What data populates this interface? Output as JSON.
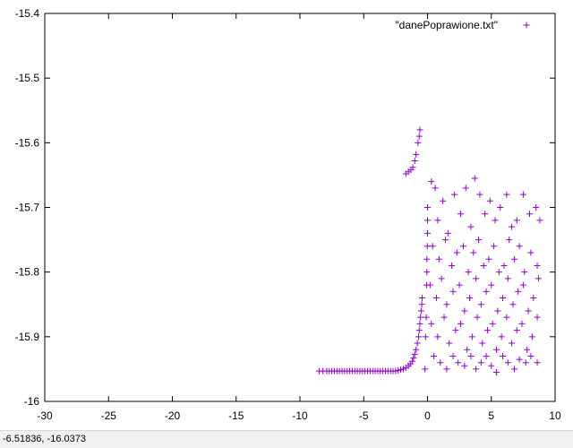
{
  "status_bar": {
    "coordinates": "-6.51836, -16.0373"
  },
  "colors": {
    "series": "#9400d3",
    "axis": "#000000",
    "background": "#ffffff",
    "statusbar": "#f0f0f0"
  },
  "chart_data": {
    "type": "scatter",
    "marker": "plus",
    "grid": false,
    "legend_position": "top-right",
    "xlim": [
      -30,
      10
    ],
    "ylim": [
      -16,
      -15.4
    ],
    "x_ticks": [
      -30,
      -25,
      -20,
      -15,
      -10,
      -5,
      0,
      5,
      10
    ],
    "y_ticks": [
      -16,
      -15.9,
      -15.8,
      -15.7,
      -15.6,
      -15.5,
      -15.4
    ],
    "x_tick_labels": [
      "-30",
      "-25",
      "-20",
      "-15",
      "-10",
      "-5",
      "0",
      "5",
      "10"
    ],
    "y_tick_labels": [
      "-16",
      "-15.9",
      "-15.8",
      "-15.7",
      "-15.6",
      "-15.5",
      "-15.4"
    ],
    "series": [
      {
        "name": "\"danePoprawione.txt\"",
        "points": [
          [
            -8.5,
            -15.953
          ],
          [
            -8.2,
            -15.953
          ],
          [
            -7.9,
            -15.953
          ],
          [
            -7.7,
            -15.953
          ],
          [
            -7.5,
            -15.953
          ],
          [
            -7.3,
            -15.953
          ],
          [
            -7.1,
            -15.953
          ],
          [
            -6.9,
            -15.953
          ],
          [
            -6.7,
            -15.953
          ],
          [
            -6.5,
            -15.953
          ],
          [
            -6.3,
            -15.953
          ],
          [
            -6.1,
            -15.953
          ],
          [
            -5.9,
            -15.953
          ],
          [
            -5.7,
            -15.953
          ],
          [
            -5.5,
            -15.953
          ],
          [
            -5.3,
            -15.953
          ],
          [
            -5.1,
            -15.953
          ],
          [
            -4.9,
            -15.953
          ],
          [
            -4.7,
            -15.953
          ],
          [
            -4.5,
            -15.953
          ],
          [
            -4.3,
            -15.953
          ],
          [
            -4.1,
            -15.953
          ],
          [
            -3.9,
            -15.953
          ],
          [
            -3.7,
            -15.953
          ],
          [
            -3.5,
            -15.953
          ],
          [
            -3.3,
            -15.953
          ],
          [
            -3.1,
            -15.953
          ],
          [
            -2.9,
            -15.953
          ],
          [
            -2.7,
            -15.953
          ],
          [
            -2.5,
            -15.953
          ],
          [
            -2.3,
            -15.952
          ],
          [
            -2.1,
            -15.951
          ],
          [
            -1.9,
            -15.95
          ],
          [
            -1.7,
            -15.948
          ],
          [
            -1.5,
            -15.945
          ],
          [
            -1.35,
            -15.942
          ],
          [
            -1.2,
            -15.938
          ],
          [
            -1.1,
            -15.933
          ],
          [
            -1.0,
            -15.927
          ],
          [
            -0.9,
            -15.92
          ],
          [
            -0.8,
            -15.91
          ],
          [
            -0.7,
            -15.9
          ],
          [
            -0.65,
            -15.89
          ],
          [
            -0.6,
            -15.88
          ],
          [
            -0.55,
            -15.87
          ],
          [
            -0.5,
            -15.86
          ],
          [
            -0.45,
            -15.85
          ],
          [
            -0.42,
            -15.84
          ],
          [
            -1.7,
            -15.648
          ],
          [
            -1.5,
            -15.645
          ],
          [
            -1.3,
            -15.642
          ],
          [
            -1.15,
            -15.638
          ],
          [
            -1.0,
            -15.628
          ],
          [
            -0.9,
            -15.618
          ],
          [
            -0.75,
            -15.6
          ],
          [
            -0.65,
            -15.59
          ],
          [
            -0.6,
            -15.58
          ],
          [
            -0.2,
            -15.95
          ],
          [
            -0.15,
            -15.9
          ],
          [
            -0.1,
            -15.87
          ],
          [
            -0.08,
            -15.82
          ],
          [
            -0.05,
            -15.8
          ],
          [
            -0.05,
            -15.78
          ],
          [
            -0.02,
            -15.76
          ],
          [
            0.0,
            -15.74
          ],
          [
            0.0,
            -15.72
          ],
          [
            0.0,
            -15.7
          ],
          [
            0.3,
            -15.66
          ],
          [
            0.6,
            -15.67
          ],
          [
            0.8,
            -15.72
          ],
          [
            1.2,
            -15.69
          ],
          [
            1.6,
            -15.74
          ],
          [
            2.1,
            -15.68
          ],
          [
            2.6,
            -15.71
          ],
          [
            3.0,
            -15.67
          ],
          [
            3.4,
            -15.73
          ],
          [
            3.7,
            -15.655
          ],
          [
            4.1,
            -15.68
          ],
          [
            4.5,
            -15.71
          ],
          [
            4.9,
            -15.69
          ],
          [
            5.3,
            -15.72
          ],
          [
            5.7,
            -15.7
          ],
          [
            6.2,
            -15.68
          ],
          [
            6.6,
            -15.73
          ],
          [
            7.0,
            -15.72
          ],
          [
            7.5,
            -15.68
          ],
          [
            8.0,
            -15.71
          ],
          [
            8.5,
            -15.7
          ],
          [
            8.8,
            -15.72
          ],
          [
            0.4,
            -15.76
          ],
          [
            0.9,
            -15.78
          ],
          [
            1.4,
            -15.75
          ],
          [
            1.9,
            -15.79
          ],
          [
            2.3,
            -15.77
          ],
          [
            2.8,
            -15.76
          ],
          [
            3.2,
            -15.8
          ],
          [
            3.6,
            -15.77
          ],
          [
            4.0,
            -15.75
          ],
          [
            4.4,
            -15.79
          ],
          [
            4.8,
            -15.78
          ],
          [
            5.2,
            -15.76
          ],
          [
            5.6,
            -15.8
          ],
          [
            6.0,
            -15.79
          ],
          [
            6.4,
            -15.75
          ],
          [
            6.8,
            -15.78
          ],
          [
            7.2,
            -15.76
          ],
          [
            7.6,
            -15.8
          ],
          [
            8.1,
            -15.77
          ],
          [
            8.6,
            -15.79
          ],
          [
            0.2,
            -15.82
          ],
          [
            0.7,
            -15.84
          ],
          [
            1.1,
            -15.81
          ],
          [
            1.5,
            -15.85
          ],
          [
            2.0,
            -15.83
          ],
          [
            2.5,
            -15.82
          ],
          [
            2.9,
            -15.86
          ],
          [
            3.3,
            -15.84
          ],
          [
            3.8,
            -15.81
          ],
          [
            4.2,
            -15.85
          ],
          [
            4.6,
            -15.83
          ],
          [
            5.0,
            -15.82
          ],
          [
            5.5,
            -15.86
          ],
          [
            5.9,
            -15.84
          ],
          [
            6.3,
            -15.81
          ],
          [
            6.7,
            -15.85
          ],
          [
            7.1,
            -15.83
          ],
          [
            7.5,
            -15.82
          ],
          [
            7.9,
            -15.86
          ],
          [
            8.3,
            -15.84
          ],
          [
            8.7,
            -15.81
          ],
          [
            0.3,
            -15.88
          ],
          [
            0.8,
            -15.9
          ],
          [
            1.3,
            -15.87
          ],
          [
            1.7,
            -15.91
          ],
          [
            2.2,
            -15.89
          ],
          [
            2.6,
            -15.88
          ],
          [
            3.1,
            -15.92
          ],
          [
            3.5,
            -15.9
          ],
          [
            3.9,
            -15.87
          ],
          [
            4.3,
            -15.91
          ],
          [
            4.7,
            -15.89
          ],
          [
            5.1,
            -15.88
          ],
          [
            5.4,
            -15.92
          ],
          [
            5.8,
            -15.9
          ],
          [
            6.2,
            -15.87
          ],
          [
            6.6,
            -15.91
          ],
          [
            7.0,
            -15.89
          ],
          [
            7.4,
            -15.88
          ],
          [
            7.8,
            -15.92
          ],
          [
            8.2,
            -15.9
          ],
          [
            8.6,
            -15.87
          ],
          [
            0.5,
            -15.93
          ],
          [
            1.0,
            -15.94
          ],
          [
            1.5,
            -15.95
          ],
          [
            2.0,
            -15.93
          ],
          [
            2.4,
            -15.94
          ],
          [
            2.9,
            -15.945
          ],
          [
            3.4,
            -15.93
          ],
          [
            3.8,
            -15.95
          ],
          [
            4.2,
            -15.94
          ],
          [
            4.6,
            -15.93
          ],
          [
            5.0,
            -15.945
          ],
          [
            5.4,
            -15.955
          ],
          [
            5.9,
            -15.93
          ],
          [
            6.3,
            -15.94
          ],
          [
            6.8,
            -15.95
          ],
          [
            7.2,
            -15.935
          ],
          [
            7.7,
            -15.94
          ],
          [
            8.1,
            -15.93
          ],
          [
            8.6,
            -15.94
          ]
        ]
      }
    ]
  }
}
